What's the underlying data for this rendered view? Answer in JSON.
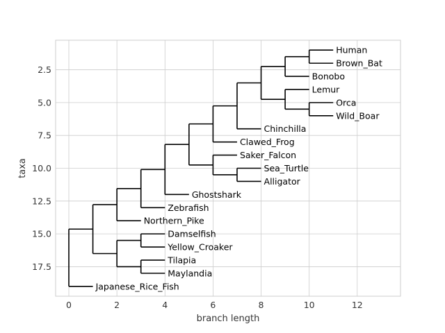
{
  "chart_data": {
    "type": "dendrogram",
    "xlabel": "branch length",
    "ylabel": "taxa",
    "xlim": [
      -0.55,
      13.8
    ],
    "ylim": [
      19.75,
      0.25
    ],
    "x_ticks": [
      0,
      2,
      4,
      6,
      8,
      10,
      12
    ],
    "y_ticks": [
      2.5,
      5.0,
      7.5,
      10.0,
      12.5,
      15.0,
      17.5
    ],
    "x_tick_labels": [
      "0",
      "2",
      "4",
      "6",
      "8",
      "10",
      "12"
    ],
    "y_tick_labels": [
      "2.5",
      "5.0",
      "7.5",
      "10.0",
      "12.5",
      "15.0",
      "17.5"
    ],
    "grid": true,
    "leaves": [
      {
        "name": "Human",
        "x": 11,
        "y": 1
      },
      {
        "name": "Brown_Bat",
        "x": 11,
        "y": 2
      },
      {
        "name": "Bonobo",
        "x": 10,
        "y": 3
      },
      {
        "name": "Lemur",
        "x": 10,
        "y": 4
      },
      {
        "name": "Orca",
        "x": 11,
        "y": 5
      },
      {
        "name": "Wild_Boar",
        "x": 11,
        "y": 6
      },
      {
        "name": "Chinchilla",
        "x": 8,
        "y": 7
      },
      {
        "name": "Clawed_Frog",
        "x": 7,
        "y": 8
      },
      {
        "name": "Saker_Falcon",
        "x": 7,
        "y": 9
      },
      {
        "name": "Sea_Turtle",
        "x": 8,
        "y": 10
      },
      {
        "name": "Alligator",
        "x": 8,
        "y": 11
      },
      {
        "name": "Ghostshark",
        "x": 5,
        "y": 12
      },
      {
        "name": "Zebrafish",
        "x": 4,
        "y": 13
      },
      {
        "name": "Northern_Pike",
        "x": 3,
        "y": 14
      },
      {
        "name": "Damselfish",
        "x": 4,
        "y": 15
      },
      {
        "name": "Yellow_Croaker",
        "x": 4,
        "y": 16
      },
      {
        "name": "Tilapia",
        "x": 4,
        "y": 17
      },
      {
        "name": "Maylandia",
        "x": 4,
        "y": 18
      },
      {
        "name": "Japanese_Rice_Fish",
        "x": 1,
        "y": 19
      }
    ],
    "clades": [
      {
        "x": 10,
        "y1": 1,
        "y2": 2,
        "parent_x": 9
      },
      {
        "x": 9,
        "y1": 1.5,
        "y2": 3,
        "parent_x": 8
      },
      {
        "x": 10,
        "y1": 5,
        "y2": 6,
        "parent_x": 9
      },
      {
        "x": 9,
        "y1": 4,
        "y2": 5.5,
        "parent_x": 8
      },
      {
        "x": 8,
        "y1": 2.25,
        "y2": 4.75,
        "parent_x": 7
      },
      {
        "x": 7,
        "y1": 3.5,
        "y2": 7,
        "parent_x": 6
      },
      {
        "x": 6,
        "y1": 5.25,
        "y2": 8,
        "parent_x": 5
      },
      {
        "x": 7,
        "y1": 10,
        "y2": 11,
        "parent_x": 6
      },
      {
        "x": 6,
        "y1": 9,
        "y2": 10.5,
        "parent_x": 5
      },
      {
        "x": 5,
        "y1": 6.625,
        "y2": 9.75,
        "parent_x": 4
      },
      {
        "x": 4,
        "y1": 8.1875,
        "y2": 12,
        "parent_x": 3
      },
      {
        "x": 3,
        "y1": 10.09375,
        "y2": 13,
        "parent_x": 2
      },
      {
        "x": 2,
        "y1": 11.546875,
        "y2": 14,
        "parent_x": 1
      },
      {
        "x": 3,
        "y1": 15,
        "y2": 16,
        "parent_x": 2
      },
      {
        "x": 3,
        "y1": 17,
        "y2": 18,
        "parent_x": 2
      },
      {
        "x": 2,
        "y1": 15.5,
        "y2": 17.5,
        "parent_x": 1
      },
      {
        "x": 1,
        "y1": 12.7734375,
        "y2": 16.5,
        "parent_x": 0
      },
      {
        "x": 0,
        "y1": 14.63671875,
        "y2": 19,
        "parent_x": null
      }
    ]
  }
}
